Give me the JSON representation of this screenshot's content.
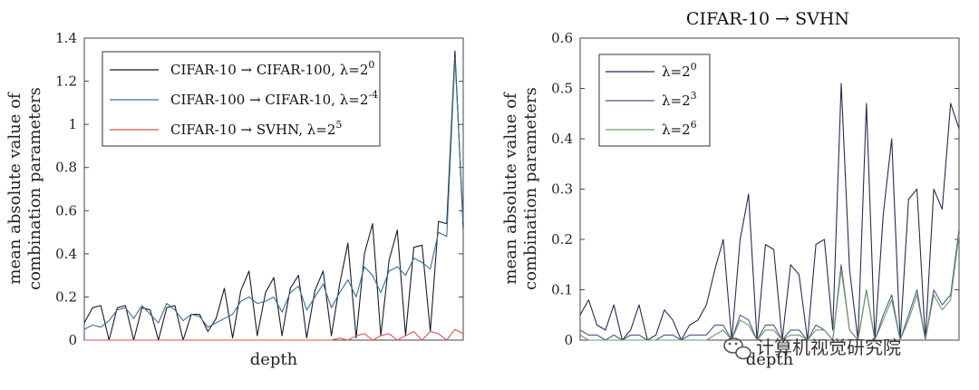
{
  "chart_data": [
    {
      "type": "line",
      "title": "",
      "xlabel": "depth",
      "ylabel": [
        "mean absolute value of",
        "combination parameters"
      ],
      "ylim": [
        0,
        1.4
      ],
      "yticks": [
        "0",
        "0.2",
        "0.4",
        "0.6",
        "0.8",
        "1",
        "1.2",
        "1.4"
      ],
      "legend_position": "top-left",
      "series": [
        {
          "name": "CIFAR-10 → CIFAR-100, λ=2",
          "exp": "0",
          "color": "#1a1a2e",
          "values": [
            0.08,
            0.15,
            0.16,
            0.0,
            0.15,
            0.16,
            0.0,
            0.15,
            0.14,
            0.0,
            0.15,
            0.16,
            0.0,
            0.12,
            0.12,
            0.04,
            0.1,
            0.24,
            0.01,
            0.23,
            0.32,
            0.02,
            0.22,
            0.29,
            0.02,
            0.24,
            0.3,
            0.01,
            0.23,
            0.32,
            0.02,
            0.26,
            0.45,
            0.01,
            0.4,
            0.54,
            0.02,
            0.37,
            0.51,
            0.02,
            0.43,
            0.44,
            0.04,
            0.55,
            0.54,
            1.34,
            0.52
          ]
        },
        {
          "name": "CIFAR-100 → CIFAR-10, λ=2",
          "exp": "-4",
          "color": "#3a6f8f",
          "values": [
            0.05,
            0.07,
            0.06,
            0.09,
            0.14,
            0.15,
            0.1,
            0.16,
            0.12,
            0.08,
            0.17,
            0.14,
            0.09,
            0.12,
            0.11,
            0.06,
            0.08,
            0.1,
            0.12,
            0.18,
            0.2,
            0.17,
            0.18,
            0.2,
            0.13,
            0.22,
            0.25,
            0.14,
            0.2,
            0.26,
            0.15,
            0.22,
            0.28,
            0.2,
            0.34,
            0.3,
            0.22,
            0.32,
            0.34,
            0.3,
            0.38,
            0.36,
            0.33,
            0.5,
            0.48,
            1.31,
            0.55
          ]
        },
        {
          "name": "CIFAR-10 → SVHN, λ=2",
          "exp": "5",
          "color": "#d9534f",
          "values": [
            0.0,
            0.0,
            0.0,
            0.0,
            0.0,
            0.0,
            0.0,
            0.0,
            0.0,
            0.0,
            0.0,
            0.0,
            0.0,
            0.0,
            0.0,
            0.0,
            0.0,
            0.0,
            0.0,
            0.0,
            0.0,
            0.0,
            0.0,
            0.0,
            0.0,
            0.0,
            0.0,
            0.0,
            0.0,
            0.0,
            0.0,
            0.01,
            0.0,
            0.02,
            0.03,
            0.0,
            0.02,
            0.03,
            0.0,
            0.02,
            0.04,
            0.0,
            0.04,
            0.03,
            0.0,
            0.05,
            0.03
          ]
        }
      ]
    },
    {
      "type": "line",
      "title": "CIFAR-10 → SVHN",
      "xlabel": "depth",
      "ylabel": [
        "mean absolute value of",
        "combination parameters"
      ],
      "ylim": [
        0,
        0.6
      ],
      "yticks": [
        "0",
        "0.1",
        "0.2",
        "0.3",
        "0.4",
        "0.5",
        "0.6"
      ],
      "legend_position": "top-left",
      "series": [
        {
          "name": "λ=2",
          "exp": "0",
          "color": "#2b2b50",
          "values": [
            0.05,
            0.08,
            0.03,
            0.02,
            0.07,
            0.0,
            0.02,
            0.07,
            0.0,
            0.01,
            0.06,
            0.04,
            0.0,
            0.03,
            0.04,
            0.07,
            0.14,
            0.2,
            0.0,
            0.2,
            0.29,
            0.0,
            0.19,
            0.18,
            0.0,
            0.15,
            0.13,
            0.0,
            0.19,
            0.2,
            0.02,
            0.51,
            0.14,
            0.0,
            0.47,
            0.0,
            0.25,
            0.4,
            0.0,
            0.28,
            0.3,
            0.0,
            0.3,
            0.26,
            0.47,
            0.42
          ]
        },
        {
          "name": "λ=2",
          "exp": "3",
          "color": "#4a5a8a",
          "values": [
            0.02,
            0.01,
            0.01,
            0.0,
            0.01,
            0.0,
            0.01,
            0.01,
            0.0,
            0.0,
            0.01,
            0.01,
            0.0,
            0.01,
            0.01,
            0.01,
            0.03,
            0.03,
            0.0,
            0.05,
            0.04,
            0.0,
            0.03,
            0.03,
            0.0,
            0.02,
            0.02,
            0.0,
            0.03,
            0.02,
            0.0,
            0.15,
            0.02,
            0.0,
            0.1,
            0.0,
            0.05,
            0.09,
            0.0,
            0.05,
            0.1,
            0.0,
            0.1,
            0.07,
            0.09,
            0.22
          ]
        },
        {
          "name": "λ=2",
          "exp": "6",
          "color": "#6a9a6a",
          "values": [
            0.01,
            0.0,
            0.0,
            0.0,
            0.0,
            0.0,
            0.0,
            0.0,
            0.0,
            0.0,
            0.0,
            0.0,
            0.0,
            0.0,
            0.0,
            0.0,
            0.01,
            0.02,
            0.0,
            0.04,
            0.03,
            0.0,
            0.02,
            0.02,
            0.0,
            0.01,
            0.01,
            0.0,
            0.02,
            0.02,
            0.0,
            0.14,
            0.02,
            0.0,
            0.1,
            0.0,
            0.04,
            0.08,
            0.0,
            0.04,
            0.09,
            0.0,
            0.09,
            0.06,
            0.08,
            0.21
          ]
        }
      ]
    }
  ],
  "watermark": {
    "text": "计算机视觉研究院",
    "icon": "wechat-icon"
  }
}
